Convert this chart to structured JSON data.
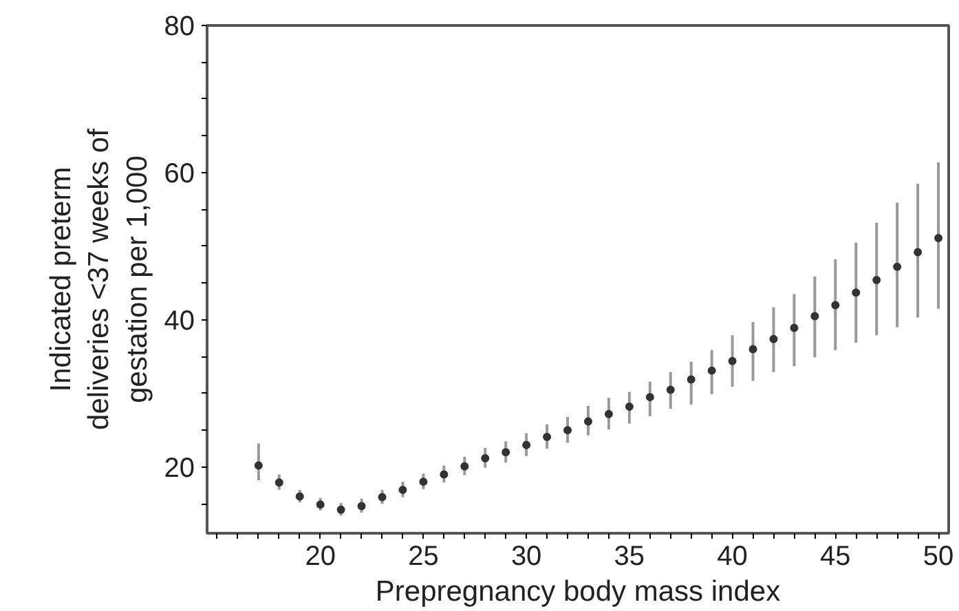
{
  "chart_data": {
    "type": "scatter",
    "xlabel": "Prepregnancy body mass index",
    "ylabel": "Indicated preterm deliveries <37 weeks of gestation per 1,000",
    "x": [
      17,
      18,
      19,
      20,
      21,
      22,
      23,
      24,
      25,
      26,
      27,
      28,
      29,
      30,
      31,
      32,
      33,
      34,
      35,
      36,
      37,
      38,
      39,
      40,
      41,
      42,
      43,
      44,
      45,
      46,
      47,
      48,
      49,
      50
    ],
    "series": [
      {
        "color": "#333333",
        "values": [
          20.2,
          17.9,
          16.0,
          14.9,
          14.2,
          14.7,
          15.9,
          16.9,
          18.0,
          19.0,
          20.1,
          21.2,
          22.0,
          23.0,
          24.1,
          25.0,
          26.2,
          27.2,
          28.2,
          29.5,
          30.5,
          31.9,
          33.1,
          34.4,
          36.0,
          37.4,
          38.9,
          40.5,
          42.0,
          43.7,
          45.4,
          47.2,
          49.2,
          51.1
        ],
        "errors": [
          [
            18.2,
            23.2
          ],
          [
            16.9,
            19.0
          ],
          [
            15.2,
            16.9
          ],
          [
            14.1,
            15.8
          ],
          [
            13.4,
            15.1
          ],
          [
            13.8,
            15.7
          ],
          [
            15.0,
            16.9
          ],
          [
            15.9,
            18.0
          ],
          [
            17.0,
            19.1
          ],
          [
            17.9,
            20.2
          ],
          [
            18.9,
            21.4
          ],
          [
            19.9,
            22.6
          ],
          [
            20.6,
            23.5
          ],
          [
            21.5,
            24.6
          ],
          [
            22.5,
            25.8
          ],
          [
            23.3,
            26.8
          ],
          [
            24.3,
            28.3
          ],
          [
            25.1,
            29.4
          ],
          [
            25.9,
            30.2
          ],
          [
            26.9,
            31.6
          ],
          [
            27.9,
            32.9
          ],
          [
            28.5,
            34.3
          ],
          [
            29.9,
            35.9
          ],
          [
            30.9,
            37.9
          ],
          [
            31.7,
            39.7
          ],
          [
            32.9,
            41.7
          ],
          [
            33.7,
            43.5
          ],
          [
            34.9,
            45.9
          ],
          [
            35.9,
            48.2
          ],
          [
            36.9,
            50.5
          ],
          [
            37.9,
            53.2
          ],
          [
            39.0,
            55.9
          ],
          [
            40.3,
            58.5
          ],
          [
            41.5,
            61.4
          ]
        ]
      }
    ],
    "xlim": [
      14.5,
      50.5
    ],
    "ylim": [
      11,
      80
    ],
    "xticks": [
      {
        "value": 15,
        "label": null
      },
      {
        "value": 16,
        "label": null
      },
      {
        "value": 17,
        "label": null
      },
      {
        "value": 18,
        "label": null
      },
      {
        "value": 19,
        "label": null
      },
      20,
      {
        "value": 21,
        "label": null
      },
      {
        "value": 22,
        "label": null
      },
      {
        "value": 23,
        "label": null
      },
      {
        "value": 24,
        "label": null
      },
      25,
      {
        "value": 26,
        "label": null
      },
      {
        "value": 27,
        "label": null
      },
      {
        "value": 28,
        "label": null
      },
      {
        "value": 29,
        "label": null
      },
      30,
      {
        "value": 31,
        "label": null
      },
      {
        "value": 32,
        "label": null
      },
      {
        "value": 33,
        "label": null
      },
      {
        "value": 34,
        "label": null
      },
      35,
      {
        "value": 36,
        "label": null
      },
      {
        "value": 37,
        "label": null
      },
      {
        "value": 38,
        "label": null
      },
      {
        "value": 39,
        "label": null
      },
      40,
      {
        "value": 41,
        "label": null
      },
      {
        "value": 42,
        "label": null
      },
      {
        "value": 43,
        "label": null
      },
      {
        "value": 44,
        "label": null
      },
      45,
      {
        "value": 46,
        "label": null
      },
      {
        "value": 47,
        "label": null
      },
      {
        "value": 48,
        "label": null
      },
      {
        "value": 49,
        "label": null
      },
      50
    ],
    "yticks": [
      {
        "value": 15,
        "label": null
      },
      20,
      {
        "value": 25,
        "label": null
      },
      {
        "value": 30,
        "label": null
      },
      {
        "value": 35,
        "label": null
      },
      40,
      {
        "value": 45,
        "label": null
      },
      {
        "value": 50,
        "label": null
      },
      {
        "value": 55,
        "label": null
      },
      60,
      {
        "value": 65,
        "label": null
      },
      {
        "value": 70,
        "label": null
      },
      {
        "value": 75,
        "label": null
      },
      80
    ],
    "marker": "circle",
    "grid": false
  }
}
